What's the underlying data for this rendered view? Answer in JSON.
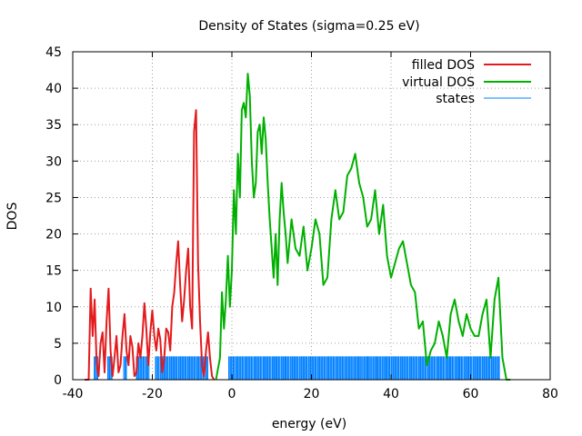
{
  "chart_data": {
    "type": "line",
    "title": "Density of States (sigma=0.25 eV)",
    "xlabel": "energy (eV)",
    "ylabel": "DOS",
    "xlim": [
      -40,
      80
    ],
    "ylim": [
      0,
      45
    ],
    "xticks": [
      -40,
      -20,
      0,
      20,
      40,
      60,
      80
    ],
    "yticks": [
      0,
      5,
      10,
      15,
      20,
      25,
      30,
      35,
      40,
      45
    ],
    "grid": true,
    "legend_position": "top-right",
    "series": [
      {
        "name": "filled DOS",
        "color": "#e41a1c",
        "x": [
          -37,
          -36,
          -35.5,
          -35,
          -34.5,
          -34,
          -33.5,
          -33,
          -32.5,
          -32,
          -31.5,
          -31,
          -30.5,
          -30,
          -29.5,
          -29,
          -28.5,
          -28,
          -27.5,
          -27,
          -26.5,
          -26,
          -25.5,
          -25,
          -24.5,
          -24,
          -23.5,
          -23,
          -22.5,
          -22,
          -21.5,
          -21,
          -20.5,
          -20,
          -19.5,
          -19,
          -18.5,
          -18,
          -17.5,
          -17,
          -16.5,
          -16,
          -15.5,
          -15,
          -14.5,
          -14,
          -13.5,
          -13,
          -12.5,
          -12,
          -11.5,
          -11,
          -10.5,
          -10,
          -9.5,
          -9,
          -8.5,
          -8,
          -7.5,
          -7,
          -6.5,
          -6,
          -5.5,
          -5,
          -4.5
        ],
        "y": [
          0,
          0,
          12.5,
          6,
          11,
          2,
          0.5,
          5,
          6.5,
          1,
          8,
          12.5,
          4,
          0.5,
          3,
          6,
          1,
          2,
          6,
          9,
          4,
          2,
          6,
          4.5,
          0.5,
          1,
          5,
          3,
          6,
          10.5,
          7,
          2,
          6.5,
          9.5,
          6,
          4,
          7,
          5.5,
          1,
          3,
          7,
          6.5,
          4,
          10,
          12,
          16,
          19,
          13,
          8,
          11,
          15,
          18,
          10,
          7,
          34,
          37,
          16,
          8,
          2,
          0.5,
          4,
          6.5,
          3,
          0.5,
          0
        ]
      },
      {
        "name": "virtual DOS",
        "color": "#00b000",
        "x": [
          -4,
          -3,
          -2.5,
          -2,
          -1.5,
          -1,
          -0.5,
          0,
          0.5,
          1,
          1.5,
          2,
          2.5,
          3,
          3.5,
          4,
          4.5,
          5,
          5.5,
          6,
          6.5,
          7,
          7.5,
          8,
          8.5,
          9,
          9.5,
          10,
          10.5,
          11,
          11.5,
          12,
          12.5,
          13,
          13.5,
          14,
          15,
          16,
          17,
          18,
          19,
          20,
          21,
          22,
          23,
          24,
          25,
          26,
          27,
          28,
          29,
          30,
          31,
          32,
          33,
          34,
          35,
          36,
          37,
          38,
          39,
          40,
          41,
          42,
          43,
          44,
          45,
          46,
          47,
          48,
          49,
          50,
          51,
          52,
          53,
          54,
          55,
          56,
          57,
          58,
          59,
          60,
          61,
          62,
          63,
          64,
          65,
          66,
          67,
          68,
          69,
          70
        ],
        "y": [
          0,
          3,
          12,
          7,
          11,
          17,
          10,
          15,
          26,
          20,
          31,
          25,
          37,
          38,
          36,
          42,
          39,
          30,
          25,
          27,
          34,
          35,
          31,
          36,
          33,
          27,
          22,
          18,
          14,
          20,
          13,
          22,
          27,
          23,
          20,
          16,
          22,
          18,
          17,
          21,
          15,
          18,
          22,
          20,
          13,
          14,
          22,
          26,
          22,
          23,
          28,
          29,
          31,
          27,
          25,
          21,
          22,
          26,
          20,
          24,
          17,
          14,
          16,
          18,
          19,
          16,
          13,
          12,
          7,
          8,
          2,
          4,
          5,
          8,
          6,
          3,
          9,
          11,
          8,
          6,
          9,
          7,
          6,
          6,
          9,
          11,
          3,
          11,
          14,
          3,
          0,
          0
        ]
      },
      {
        "name": "states",
        "color": "#0080ff",
        "type": "impulses",
        "height": 3.2,
        "ranges": [
          [
            -34.6,
            -33.6
          ],
          [
            -31.2,
            -30.0
          ],
          [
            -27.2,
            -26.2
          ],
          [
            -24.0,
            -20.8
          ],
          [
            -19.2,
            -6.0
          ],
          [
            -0.8,
            67.5
          ]
        ]
      }
    ]
  }
}
